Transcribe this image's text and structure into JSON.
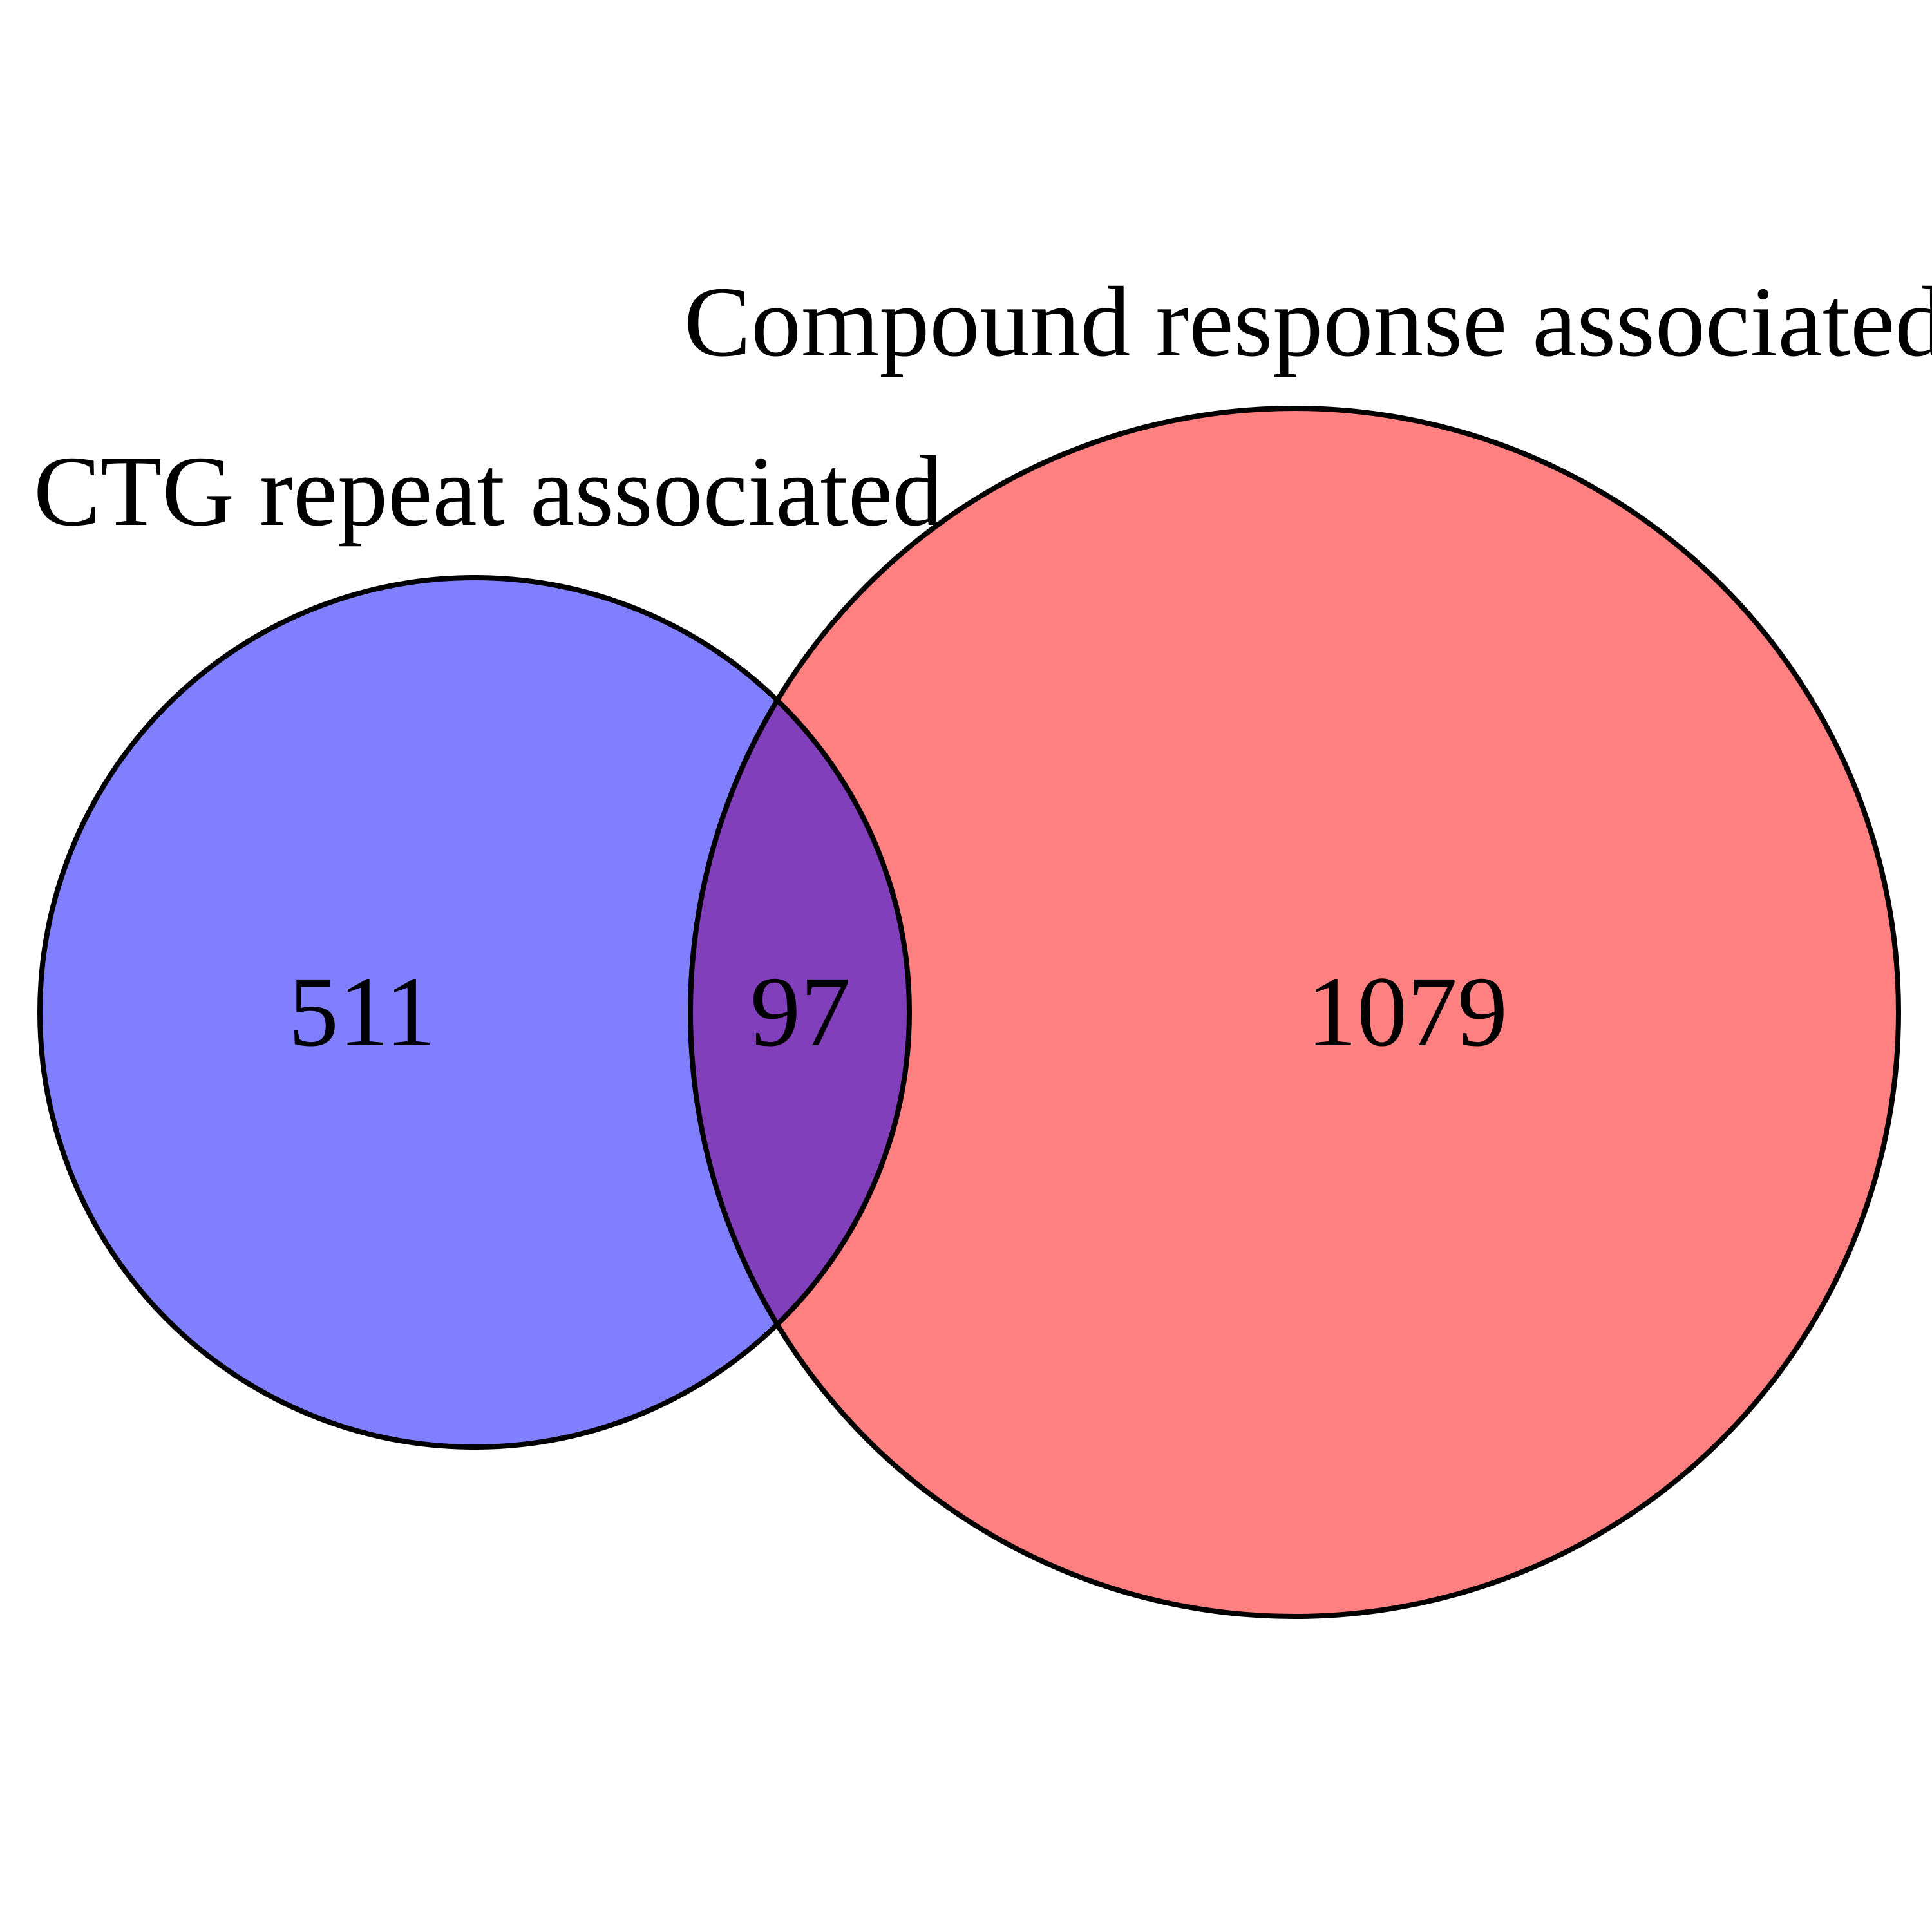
{
  "venn": {
    "sets": [
      {
        "label": "CTG repeat associated",
        "color": "#8080ff"
      },
      {
        "label": "Compound response associated",
        "color": "#ff8080"
      }
    ],
    "overlap_color": "#823fbc",
    "outline_color": "#000000",
    "counts": {
      "left_only": "511",
      "intersection": "97",
      "right_only": "1079"
    }
  }
}
